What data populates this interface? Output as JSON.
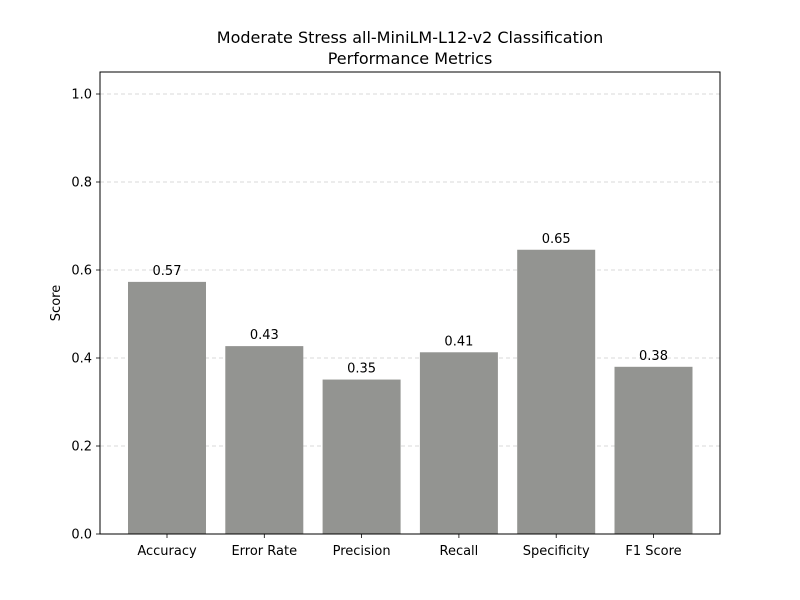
{
  "chart_data": {
    "type": "bar",
    "title": "Moderate Stress all-MiniLM-L12-v2 Classification\nPerformance Metrics",
    "title_lines": [
      "Moderate Stress all-MiniLM-L12-v2 Classification",
      "Performance Metrics"
    ],
    "xlabel": "",
    "ylabel": "Score",
    "categories": [
      "Accuracy",
      "Error Rate",
      "Precision",
      "Recall",
      "Specificity",
      "F1 Score"
    ],
    "values": [
      0.573,
      0.427,
      0.351,
      0.413,
      0.646,
      0.38
    ],
    "data_labels": [
      "0.57",
      "0.43",
      "0.35",
      "0.41",
      "0.65",
      "0.38"
    ],
    "ylim": [
      0,
      1.05
    ],
    "yticks": [
      0.0,
      0.2,
      0.4,
      0.6,
      0.8,
      1.0
    ],
    "ytick_labels": [
      "0.0",
      "0.2",
      "0.4",
      "0.6",
      "0.8",
      "1.0"
    ],
    "grid": "y-dashed",
    "bar_color": "#939491"
  }
}
